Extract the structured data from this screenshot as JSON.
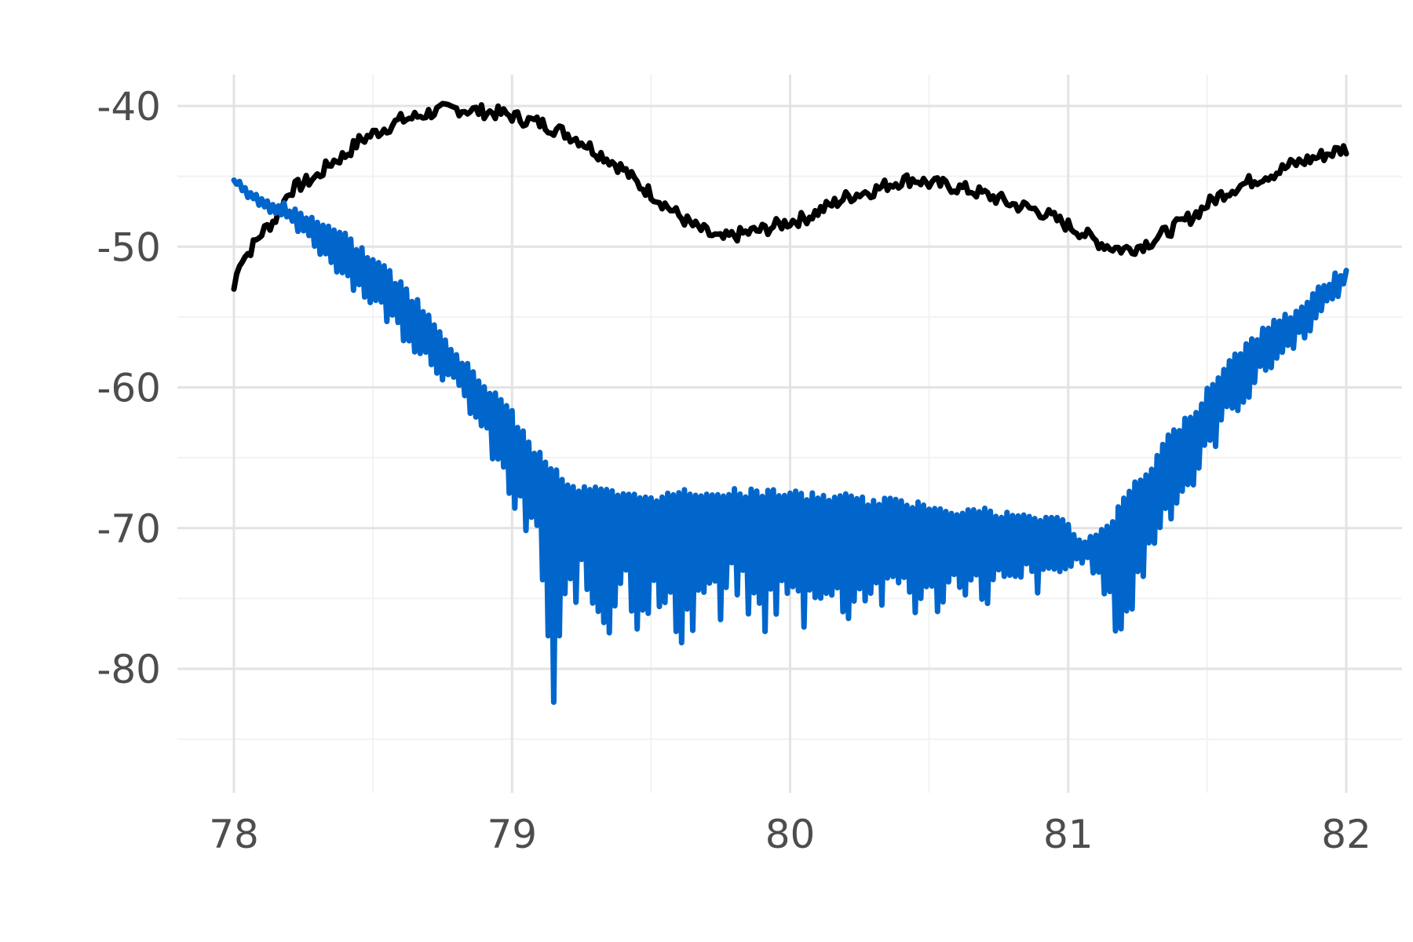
{
  "chart_data": {
    "type": "line",
    "title": "",
    "xlabel": "",
    "ylabel": "",
    "xlim": [
      77.8,
      82.1
    ],
    "ylim": [
      -87.5,
      -37.5
    ],
    "x_ticks": [
      78,
      79,
      80,
      81,
      82
    ],
    "x_tick_labels": [
      "78",
      "79",
      "80",
      "81",
      "82"
    ],
    "x_minor_ticks": [
      78.5,
      79.5,
      80.5,
      81.5
    ],
    "y_ticks": [
      -40,
      -50,
      -60,
      -70,
      -80
    ],
    "y_tick_labels": [
      "-40",
      "-50",
      "-60",
      "-70",
      "-80"
    ],
    "y_minor_ticks": [
      -45,
      -55,
      -65,
      -75,
      -85
    ],
    "grid": true,
    "legend": "none",
    "series": [
      {
        "color": "#000000",
        "x": [
          78.0,
          78.02,
          78.05,
          78.1,
          78.15,
          78.2,
          78.25,
          78.3,
          78.35,
          78.4,
          78.45,
          78.5,
          78.55,
          78.6,
          78.65,
          78.7,
          78.75,
          78.8,
          78.85,
          78.9,
          78.95,
          79.0,
          79.05,
          79.1,
          79.15,
          79.2,
          79.25,
          79.3,
          79.35,
          79.4,
          79.45,
          79.5,
          79.55,
          79.6,
          79.65,
          79.7,
          79.75,
          79.8,
          79.85,
          79.9,
          79.95,
          80.0,
          80.05,
          80.1,
          80.15,
          80.2,
          80.25,
          80.3,
          80.35,
          80.4,
          80.45,
          80.5,
          80.55,
          80.6,
          80.65,
          80.7,
          80.75,
          80.8,
          80.85,
          80.9,
          80.95,
          81.0,
          81.05,
          81.1,
          81.15,
          81.2,
          81.25,
          81.3,
          81.35,
          81.4,
          81.45,
          81.5,
          81.55,
          81.6,
          81.65,
          81.7,
          81.75,
          81.8,
          81.85,
          81.9,
          81.95,
          82.0
        ],
        "values": [
          -53.0,
          -51.0,
          -50.5,
          -49.0,
          -48.0,
          -46.0,
          -45.5,
          -45.0,
          -44.0,
          -43.5,
          -42.5,
          -42.0,
          -41.5,
          -41.0,
          -40.8,
          -40.5,
          -40.3,
          -40.2,
          -40.3,
          -40.4,
          -40.5,
          -40.7,
          -41.0,
          -41.2,
          -41.6,
          -42.0,
          -42.5,
          -43.2,
          -43.8,
          -44.5,
          -45.5,
          -46.2,
          -47.0,
          -47.8,
          -48.5,
          -49.0,
          -49.5,
          -49.2,
          -49.0,
          -48.8,
          -48.5,
          -48.2,
          -48.0,
          -47.5,
          -47.0,
          -46.5,
          -46.2,
          -46.0,
          -45.6,
          -45.3,
          -45.2,
          -45.5,
          -45.6,
          -45.8,
          -46.0,
          -46.3,
          -46.6,
          -47.0,
          -47.2,
          -47.5,
          -48.0,
          -48.5,
          -49.0,
          -49.6,
          -50.0,
          -50.2,
          -50.0,
          -49.6,
          -49.0,
          -48.4,
          -47.8,
          -47.0,
          -46.3,
          -45.8,
          -45.4,
          -45.0,
          -44.7,
          -44.2,
          -43.9,
          -43.6,
          -43.3,
          -43.0
        ],
        "values_note_jitter": 0.5
      },
      {
        "color": "#0066cc",
        "x": [
          78.0,
          78.05,
          78.1,
          78.15,
          78.2,
          78.25,
          78.3,
          78.35,
          78.4,
          78.45,
          78.5,
          78.55,
          78.6,
          78.65,
          78.7,
          78.75,
          78.8,
          78.85,
          78.9,
          78.95,
          79.0,
          79.05,
          79.1,
          79.15,
          79.2,
          79.25,
          79.3,
          79.35,
          79.4,
          79.45,
          79.5,
          79.55,
          79.6,
          79.65,
          79.7,
          79.75,
          79.8,
          79.85,
          79.9,
          79.95,
          80.0,
          80.05,
          80.1,
          80.15,
          80.2,
          80.25,
          80.3,
          80.35,
          80.4,
          80.45,
          80.5,
          80.55,
          80.6,
          80.65,
          80.7,
          80.75,
          80.8,
          80.85,
          80.9,
          80.95,
          81.0,
          81.05,
          81.1,
          81.15,
          81.2,
          81.25,
          81.3,
          81.35,
          81.4,
          81.45,
          81.5,
          81.55,
          81.6,
          81.65,
          81.7,
          81.75,
          81.8,
          81.85,
          81.9,
          81.95,
          82.0
        ],
        "upper": [
          -45.0,
          -45.8,
          -46.3,
          -46.6,
          -47.0,
          -47.5,
          -47.8,
          -48.3,
          -49.0,
          -49.8,
          -50.5,
          -51.5,
          -52.5,
          -53.5,
          -54.8,
          -56.0,
          -57.5,
          -58.5,
          -59.5,
          -60.5,
          -61.5,
          -63.5,
          -64.5,
          -65.5,
          -66.5,
          -67.0,
          -67.0,
          -67.2,
          -67.5,
          -67.5,
          -67.5,
          -67.5,
          -67.2,
          -67.2,
          -67.2,
          -67.2,
          -67.2,
          -67.2,
          -67.2,
          -67.2,
          -67.2,
          -67.5,
          -67.5,
          -67.5,
          -67.5,
          -67.8,
          -67.8,
          -67.8,
          -68.0,
          -68.0,
          -68.2,
          -68.2,
          -68.5,
          -68.5,
          -68.5,
          -68.8,
          -68.8,
          -69.0,
          -69.0,
          -69.0,
          -69.5,
          -70.5,
          -70.5,
          -69.5,
          -67.5,
          -66.5,
          -65.5,
          -63.5,
          -62.5,
          -61.5,
          -60.0,
          -58.5,
          -57.5,
          -56.5,
          -55.8,
          -55.0,
          -54.5,
          -53.8,
          -52.8,
          -52.0,
          -51.2
        ],
        "lower": [
          -45.5,
          -46.5,
          -47.2,
          -47.8,
          -48.5,
          -49.5,
          -50.5,
          -51.5,
          -52.5,
          -53.5,
          -54.5,
          -55.5,
          -56.5,
          -57.5,
          -58.5,
          -59.5,
          -60.5,
          -62.0,
          -64.0,
          -66.5,
          -69.0,
          -71.0,
          -72.0,
          -86.5,
          -76.0,
          -75.0,
          -77.0,
          -78.0,
          -74.0,
          -77.5,
          -76.0,
          -77.5,
          -78.5,
          -78.0,
          -75.0,
          -78.0,
          -74.5,
          -77.0,
          -78.0,
          -76.5,
          -76.0,
          -77.5,
          -75.0,
          -76.5,
          -77.0,
          -76.0,
          -75.5,
          -76.5,
          -74.5,
          -76.5,
          -76.5,
          -76.0,
          -74.5,
          -75.0,
          -76.0,
          -74.5,
          -75.5,
          -74.0,
          -75.0,
          -74.0,
          -73.5,
          -72.5,
          -73.5,
          -77.0,
          -78.5,
          -75.5,
          -72.0,
          -70.0,
          -68.5,
          -67.5,
          -65.5,
          -63.5,
          -62.0,
          -61.0,
          -59.5,
          -58.5,
          -57.5,
          -56.5,
          -55.5,
          -54.0,
          -53.0
        ]
      }
    ]
  }
}
